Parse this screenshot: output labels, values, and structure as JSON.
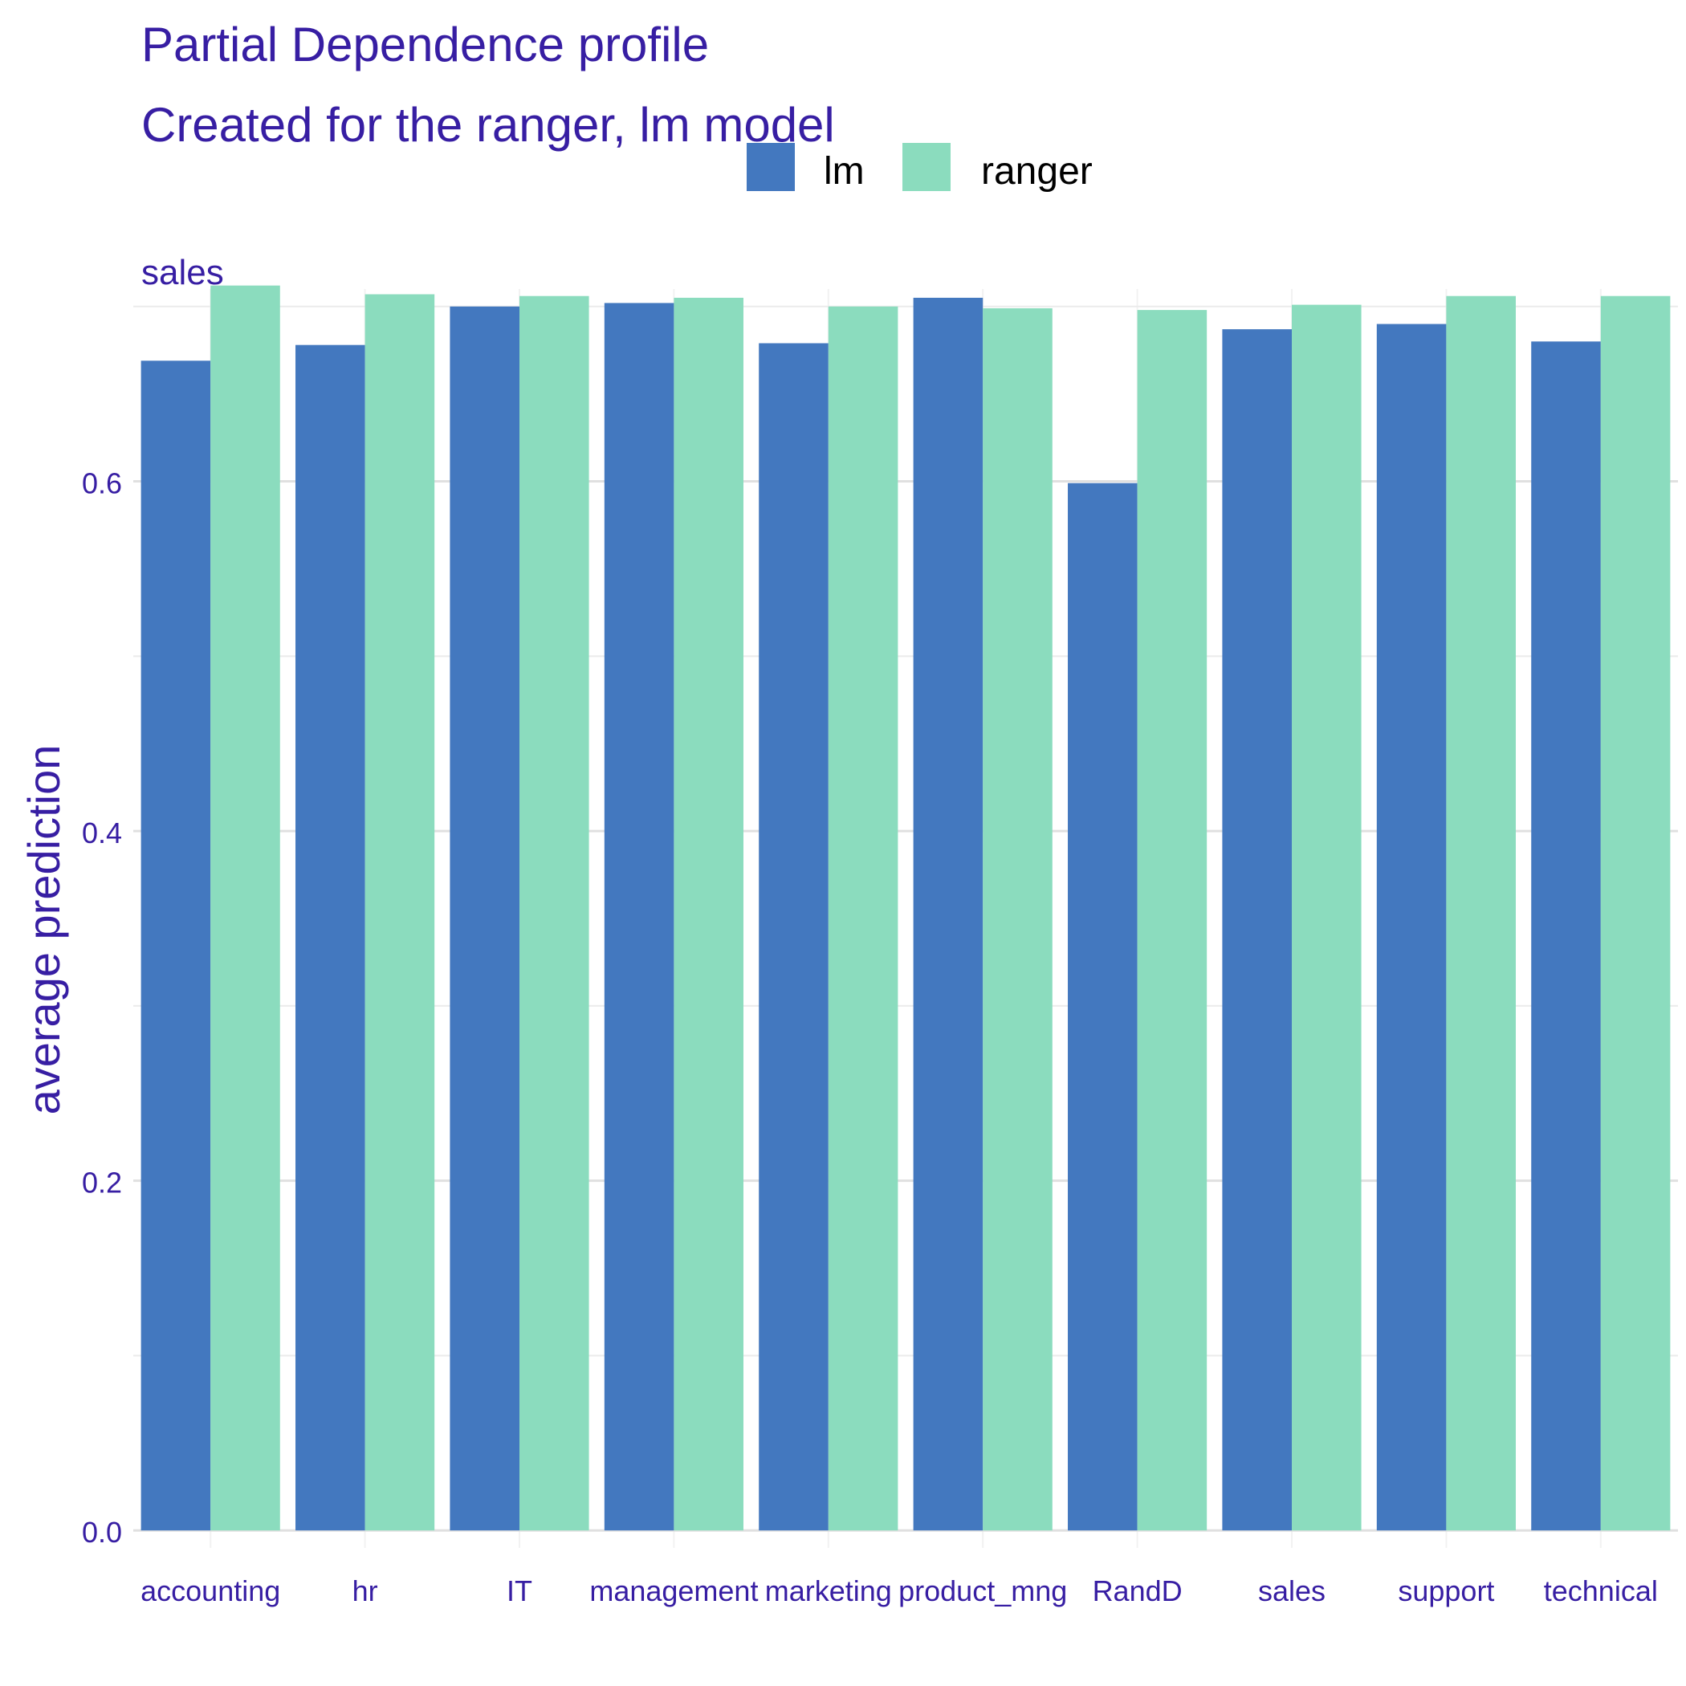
{
  "chart_data": {
    "type": "bar",
    "title": "Partial Dependence profile",
    "subtitle": "Created for the ranger, lm model",
    "facet_label": "sales",
    "xlabel": "",
    "ylabel": "average prediction",
    "ylim": [
      -0.01,
      0.71
    ],
    "yticks": [
      "0.0",
      "0.2",
      "0.4",
      "0.6"
    ],
    "ytick_values": [
      0.0,
      0.2,
      0.4,
      0.6
    ],
    "grid": true,
    "legend_position": "top",
    "categories": [
      "accounting",
      "hr",
      "IT",
      "management",
      "marketing",
      "product_mng",
      "RandD",
      "sales",
      "support",
      "technical"
    ],
    "series": [
      {
        "name": "lm",
        "color": "#4378bf",
        "values": [
          0.669,
          0.678,
          0.7,
          0.702,
          0.679,
          0.705,
          0.599,
          0.687,
          0.69,
          0.68
        ]
      },
      {
        "name": "ranger",
        "color": "#8bdcbe",
        "values": [
          0.712,
          0.707,
          0.706,
          0.705,
          0.7,
          0.699,
          0.698,
          0.701,
          0.706,
          0.706
        ]
      }
    ]
  }
}
